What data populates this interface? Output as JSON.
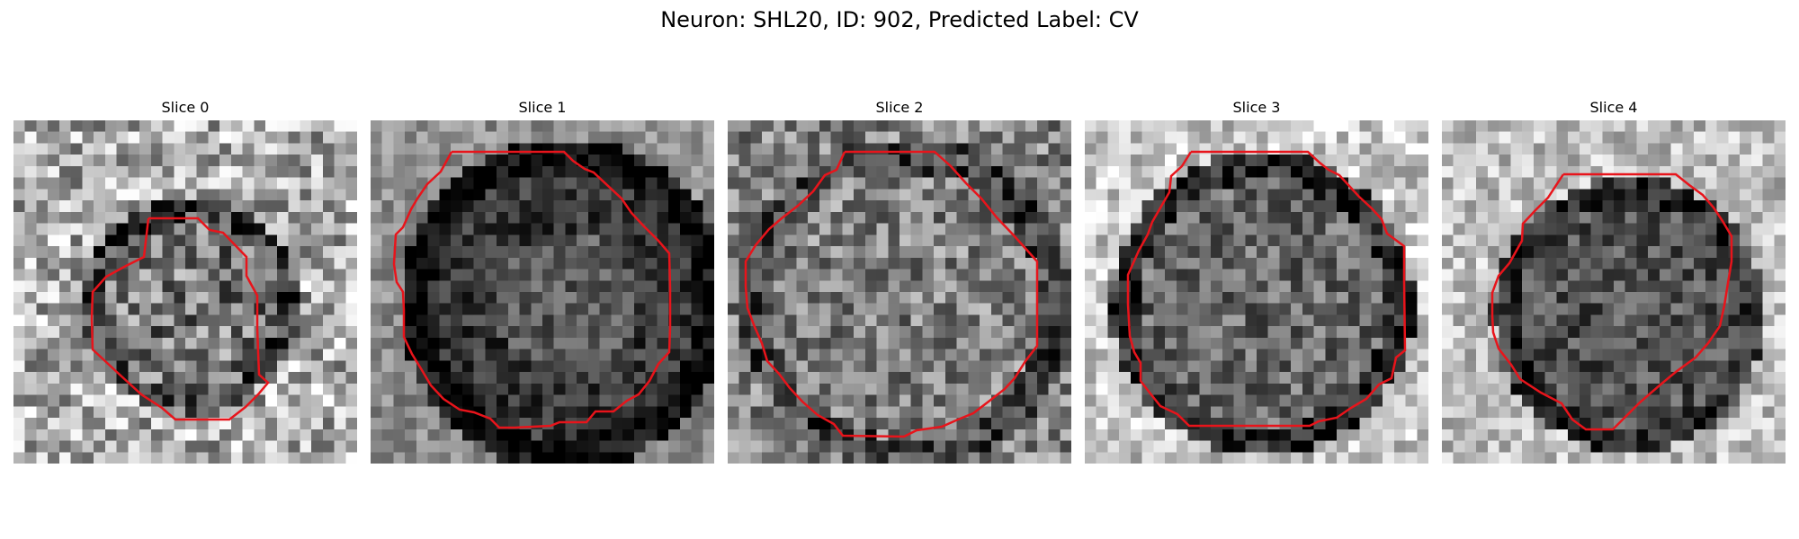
{
  "figure": {
    "title": "Neuron: SHL20, ID: 902, Predicted Label: CV"
  },
  "panels": [
    {
      "title": "Slice 0",
      "tone": "light-background-dim-cell",
      "contour": "small-octagon"
    },
    {
      "title": "Slice 1",
      "tone": "dark-cell-bright-interior",
      "contour": "large-octagon"
    },
    {
      "title": "Slice 2",
      "tone": "mid-gray-textured-cell",
      "contour": "large-octagon"
    },
    {
      "title": "Slice 3",
      "tone": "dark-ring-gray-interior",
      "contour": "large-octagon"
    },
    {
      "title": "Slice 4",
      "tone": "dark-cell-light-border",
      "contour": "medium-octagon"
    }
  ],
  "colors": {
    "contour": "#e8141b",
    "background": "#ffffff"
  }
}
